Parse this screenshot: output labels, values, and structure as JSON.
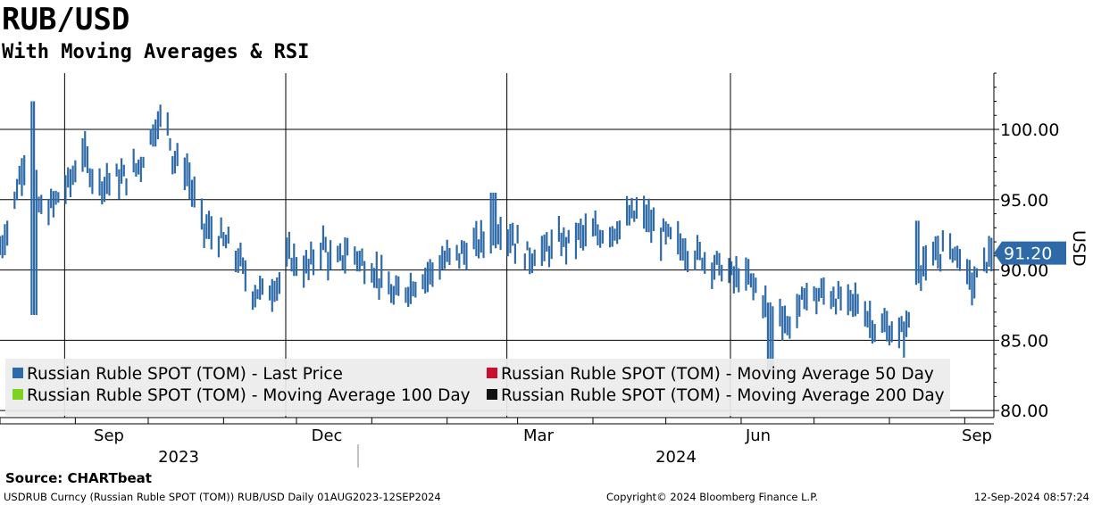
{
  "title": "RUB/USD",
  "subtitle": "With Moving Averages & RSI",
  "source": "Source: CHARTbeat",
  "footer": {
    "left": "USDRUB Curncy (Russian Ruble SPOT (TOM)) RUB/USD  Daily 01AUG2023-12SEP2024",
    "center": "Copyright© 2024 Bloomberg Finance L.P.",
    "right": "12-Sep-2024 08:57:24"
  },
  "colors": {
    "price": "#2e6aa8",
    "ma50": "#c8102e",
    "ma100": "#7ed321",
    "ma200": "#111111",
    "grid": "#000000",
    "legend_bg": "#ececec",
    "last_badge": "#2e6aa8"
  },
  "chart_data": {
    "type": "bar",
    "style": "ohlc",
    "title": "RUB/USD",
    "subtitle": "With Moving Averages & RSI",
    "ylabel": "USD",
    "ylim": [
      79.5,
      104
    ],
    "yticks": [
      80,
      85,
      90,
      95,
      100
    ],
    "ytick_labels": [
      "80.00",
      "85.00",
      "90.00",
      "95.00",
      "100.00"
    ],
    "grid": true,
    "last_value": 91.2,
    "last_label": "91.20",
    "x_month_labels": [
      "Sep",
      "Dec",
      "Mar",
      "Jun",
      "Sep"
    ],
    "x_year_labels": [
      "2023",
      "2024"
    ],
    "legend_position": "bottom-left",
    "series": [
      {
        "name": "Russian Ruble SPOT (TOM) - Last Price",
        "color": "#2e6aa8"
      },
      {
        "name": "Russian Ruble SPOT (TOM) - Moving Average 50 Day",
        "color": "#c8102e"
      },
      {
        "name": "Russian Ruble SPOT (TOM) - Moving Average 100 Day",
        "color": "#7ed321"
      },
      {
        "name": "Russian Ruble SPOT (TOM) - Moving Average 200 Day",
        "color": "#111111"
      }
    ],
    "price_path": [
      [
        "2023-08-01",
        91.5
      ],
      [
        "2023-08-05",
        93.5
      ],
      [
        "2023-08-09",
        96.5
      ],
      [
        "2023-08-12",
        98.5
      ],
      [
        "2023-08-14",
        101.0
      ],
      [
        "2023-08-15",
        97.0
      ],
      [
        "2023-08-17",
        94.5
      ],
      [
        "2023-08-20",
        94.0
      ],
      [
        "2023-08-24",
        95.0
      ],
      [
        "2023-08-28",
        95.8
      ],
      [
        "2023-09-01",
        97.0
      ],
      [
        "2023-09-04",
        98.5
      ],
      [
        "2023-09-06",
        97.5
      ],
      [
        "2023-09-08",
        96.8
      ],
      [
        "2023-09-12",
        96.2
      ],
      [
        "2023-09-15",
        96.5
      ],
      [
        "2023-09-20",
        96.5
      ],
      [
        "2023-09-25",
        97.0
      ],
      [
        "2023-09-29",
        98.0
      ],
      [
        "2023-10-03",
        100.0
      ],
      [
        "2023-10-06",
        100.5
      ],
      [
        "2023-10-09",
        101.0
      ],
      [
        "2023-10-11",
        98.0
      ],
      [
        "2023-10-14",
        97.5
      ],
      [
        "2023-10-17",
        97.0
      ],
      [
        "2023-10-20",
        95.0
      ],
      [
        "2023-10-24",
        93.0
      ],
      [
        "2023-10-28",
        92.5
      ],
      [
        "2023-11-01",
        92.0
      ],
      [
        "2023-11-04",
        91.5
      ],
      [
        "2023-11-08",
        90.5
      ],
      [
        "2023-11-12",
        88.5
      ],
      [
        "2023-11-15",
        88.5
      ],
      [
        "2023-11-20",
        88.5
      ],
      [
        "2023-11-25",
        89.5
      ],
      [
        "2023-11-28",
        91.0
      ],
      [
        "2023-12-01",
        90.5
      ],
      [
        "2023-12-05",
        90.0
      ],
      [
        "2023-12-09",
        91.0
      ],
      [
        "2023-12-12",
        92.0
      ],
      [
        "2023-12-16",
        90.0
      ],
      [
        "2023-12-20",
        91.0
      ],
      [
        "2023-12-24",
        91.5
      ],
      [
        "2023-12-28",
        90.5
      ],
      [
        "2024-01-02",
        90.0
      ],
      [
        "2024-01-06",
        89.0
      ],
      [
        "2024-01-10",
        88.0
      ],
      [
        "2024-01-14",
        88.5
      ],
      [
        "2024-01-18",
        89.0
      ],
      [
        "2024-01-22",
        89.5
      ],
      [
        "2024-01-26",
        90.0
      ],
      [
        "2024-01-30",
        90.5
      ],
      [
        "2024-02-03",
        91.0
      ],
      [
        "2024-02-07",
        91.2
      ],
      [
        "2024-02-11",
        91.5
      ],
      [
        "2024-02-15",
        92.0
      ],
      [
        "2024-02-19",
        92.5
      ],
      [
        "2024-02-23",
        93.0
      ],
      [
        "2024-02-27",
        92.5
      ],
      [
        "2024-03-02",
        91.5
      ],
      [
        "2024-03-06",
        91.0
      ],
      [
        "2024-03-10",
        91.2
      ],
      [
        "2024-03-14",
        91.5
      ],
      [
        "2024-03-18",
        92.0
      ],
      [
        "2024-03-22",
        92.0
      ],
      [
        "2024-03-26",
        92.5
      ],
      [
        "2024-03-30",
        92.5
      ],
      [
        "2024-04-03",
        92.5
      ],
      [
        "2024-04-07",
        92.8
      ],
      [
        "2024-04-11",
        93.0
      ],
      [
        "2024-04-15",
        93.5
      ],
      [
        "2024-04-19",
        94.0
      ],
      [
        "2024-04-23",
        93.8
      ],
      [
        "2024-04-27",
        92.5
      ],
      [
        "2024-05-01",
        92.5
      ],
      [
        "2024-05-05",
        92.0
      ],
      [
        "2024-05-09",
        91.5
      ],
      [
        "2024-05-13",
        91.2
      ],
      [
        "2024-05-17",
        90.8
      ],
      [
        "2024-05-21",
        90.5
      ],
      [
        "2024-05-25",
        90.0
      ],
      [
        "2024-05-29",
        89.5
      ],
      [
        "2024-06-02",
        89.5
      ],
      [
        "2024-06-06",
        89.0
      ],
      [
        "2024-06-10",
        88.0
      ],
      [
        "2024-06-13",
        86.5
      ],
      [
        "2024-06-16",
        87.5
      ],
      [
        "2024-06-20",
        86.0
      ],
      [
        "2024-06-24",
        87.0
      ],
      [
        "2024-06-28",
        88.5
      ],
      [
        "2024-07-02",
        88.0
      ],
      [
        "2024-07-06",
        88.5
      ],
      [
        "2024-07-10",
        88.0
      ],
      [
        "2024-07-14",
        87.5
      ],
      [
        "2024-07-18",
        87.8
      ],
      [
        "2024-07-22",
        87.0
      ],
      [
        "2024-07-26",
        86.0
      ],
      [
        "2024-07-30",
        85.8
      ],
      [
        "2024-08-03",
        85.5
      ],
      [
        "2024-08-07",
        85.5
      ],
      [
        "2024-08-09",
        86.5
      ],
      [
        "2024-08-12",
        90.0
      ],
      [
        "2024-08-15",
        90.5
      ],
      [
        "2024-08-17",
        89.5
      ],
      [
        "2024-08-20",
        91.0
      ],
      [
        "2024-08-23",
        91.5
      ],
      [
        "2024-08-27",
        91.5
      ],
      [
        "2024-08-30",
        91.0
      ],
      [
        "2024-09-02",
        89.5
      ],
      [
        "2024-09-05",
        89.0
      ],
      [
        "2024-09-09",
        90.5
      ],
      [
        "2024-09-12",
        91.2
      ]
    ],
    "notable_spikes": [
      [
        "2023-08-14",
        102.0
      ],
      [
        "2023-08-15",
        86.8
      ],
      [
        "2024-02-20",
        95.5
      ],
      [
        "2024-06-13",
        82.5
      ],
      [
        "2024-08-12",
        93.5
      ]
    ]
  }
}
